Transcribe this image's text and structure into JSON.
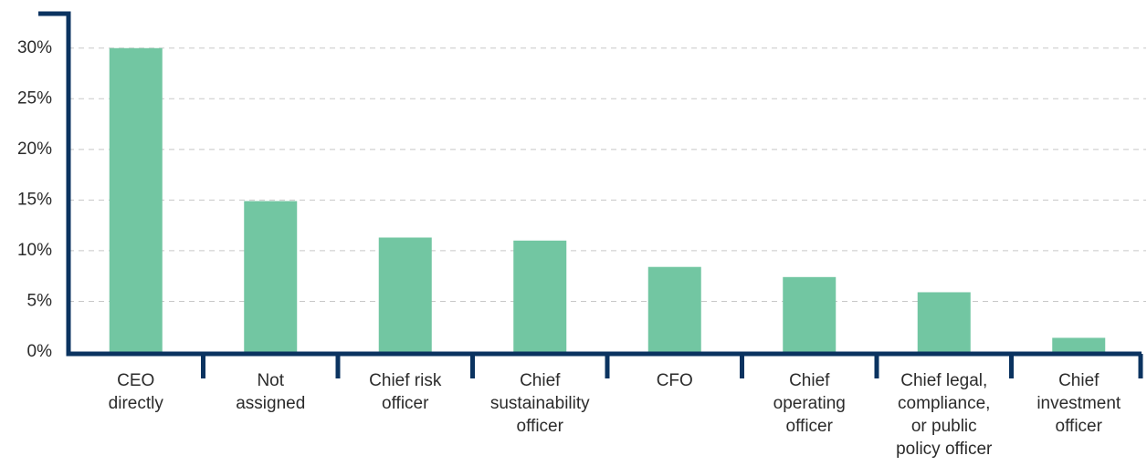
{
  "chart_data": {
    "type": "bar",
    "categories": [
      [
        "CEO",
        "directly"
      ],
      [
        "Not",
        "assigned"
      ],
      [
        "Chief risk",
        "officer"
      ],
      [
        "Chief",
        "sustainability",
        "officer"
      ],
      [
        "CFO"
      ],
      [
        "Chief",
        "operating",
        "officer"
      ],
      [
        "Chief legal,",
        "compliance,",
        "or public",
        "policy officer"
      ],
      [
        "Chief",
        "investment",
        "officer"
      ]
    ],
    "values": [
      30,
      14.9,
      11.3,
      11.0,
      8.4,
      7.4,
      5.9,
      1.4
    ],
    "color": "#72c6a2",
    "ylim": [
      0,
      33.4
    ],
    "yticks": [
      {
        "value": 0,
        "label": "0%"
      },
      {
        "value": 5,
        "label": "5%"
      },
      {
        "value": 10,
        "label": "10%"
      },
      {
        "value": 15,
        "label": "15%"
      },
      {
        "value": 20,
        "label": "20%"
      },
      {
        "value": 25,
        "label": "25%"
      },
      {
        "value": 30,
        "label": "30%"
      }
    ],
    "grid": true
  }
}
